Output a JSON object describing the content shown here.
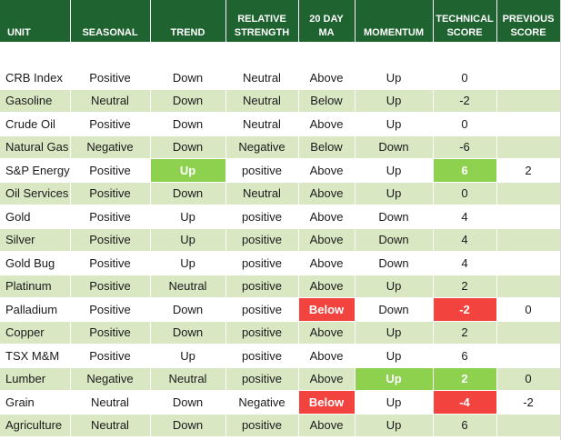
{
  "headers": {
    "unit": "UNIT",
    "seasonal": "SEASONAL",
    "trend": "TREND",
    "relative_strength": [
      "RELATIVE",
      "STRENGTH"
    ],
    "ma20": [
      "20 DAY",
      "MA"
    ],
    "momentum": "MOMENTUM",
    "technical_score": [
      "TECHNICAL",
      "SCORE"
    ],
    "previous_score": [
      "PREVIOUS",
      "SCORE"
    ]
  },
  "colors": {
    "header_bg": "#1f6330",
    "band_bg": "#d9e7c3",
    "highlight_green": "#8ed14f",
    "highlight_red": "#f2433f"
  },
  "rows": [
    {
      "unit": "CRB Index",
      "seasonal": "Positive",
      "trend": "Down",
      "rel": "Neutral",
      "ma": "Above",
      "momentum": "Up",
      "score": "0",
      "prev": ""
    },
    {
      "unit": "Gasoline",
      "seasonal": "Neutral",
      "trend": "Down",
      "rel": "Neutral",
      "ma": "Below",
      "momentum": "Up",
      "score": "-2",
      "prev": ""
    },
    {
      "unit": "Crude Oil",
      "seasonal": "Positive",
      "trend": "Down",
      "rel": "Neutral",
      "ma": "Above",
      "momentum": "Up",
      "score": "0",
      "prev": ""
    },
    {
      "unit": "Natural Gas",
      "seasonal": "Negative",
      "trend": "Down",
      "rel": "Negative",
      "ma": "Below",
      "momentum": "Down",
      "score": "-6",
      "prev": ""
    },
    {
      "unit": "S&P Energy",
      "seasonal": "Positive",
      "trend": "Up",
      "rel": "positive",
      "ma": "Above",
      "momentum": "Up",
      "score": "6",
      "prev": "2"
    },
    {
      "unit": "Oil Services",
      "seasonal": "Positive",
      "trend": "Down",
      "rel": "Neutral",
      "ma": "Above",
      "momentum": "Up",
      "score": "0",
      "prev": ""
    },
    {
      "unit": "Gold",
      "seasonal": "Positive",
      "trend": "Up",
      "rel": "positive",
      "ma": "Above",
      "momentum": "Down",
      "score": "4",
      "prev": ""
    },
    {
      "unit": "Silver",
      "seasonal": "Positive",
      "trend": "Up",
      "rel": "positive",
      "ma": "Above",
      "momentum": "Down",
      "score": "4",
      "prev": ""
    },
    {
      "unit": "Gold Bug",
      "seasonal": "Positive",
      "trend": "Up",
      "rel": "positive",
      "ma": "Above",
      "momentum": "Down",
      "score": "4",
      "prev": ""
    },
    {
      "unit": "Platinum",
      "seasonal": "Positive",
      "trend": "Neutral",
      "rel": "positive",
      "ma": "Above",
      "momentum": "Up",
      "score": "2",
      "prev": ""
    },
    {
      "unit": "Palladium",
      "seasonal": "Positive",
      "trend": "Down",
      "rel": "positive",
      "ma": "Below",
      "momentum": "Down",
      "score": "-2",
      "prev": "0"
    },
    {
      "unit": "Copper",
      "seasonal": "Positive",
      "trend": "Down",
      "rel": "positive",
      "ma": "Above",
      "momentum": "Up",
      "score": "2",
      "prev": ""
    },
    {
      "unit": "TSX M&M",
      "seasonal": "Positive",
      "trend": "Up",
      "rel": "positive",
      "ma": "Above",
      "momentum": "Up",
      "score": "6",
      "prev": ""
    },
    {
      "unit": "Lumber",
      "seasonal": "Negative",
      "trend": "Neutral",
      "rel": "positive",
      "ma": "Above",
      "momentum": "Up",
      "score": "2",
      "prev": "0"
    },
    {
      "unit": "Grain",
      "seasonal": "Neutral",
      "trend": "Down",
      "rel": "Negative",
      "ma": "Below",
      "momentum": "Up",
      "score": "-4",
      "prev": "-2"
    },
    {
      "unit": "Agriculture",
      "seasonal": "Neutral",
      "trend": "Down",
      "rel": "positive",
      "ma": "Above",
      "momentum": "Up",
      "score": "6",
      "prev": ""
    }
  ],
  "highlights": {
    "4": {
      "trend": "green",
      "score": "green"
    },
    "10": {
      "ma": "red",
      "score": "red"
    },
    "13": {
      "momentum": "green",
      "score": "green"
    },
    "14": {
      "ma": "red",
      "score": "red"
    }
  }
}
